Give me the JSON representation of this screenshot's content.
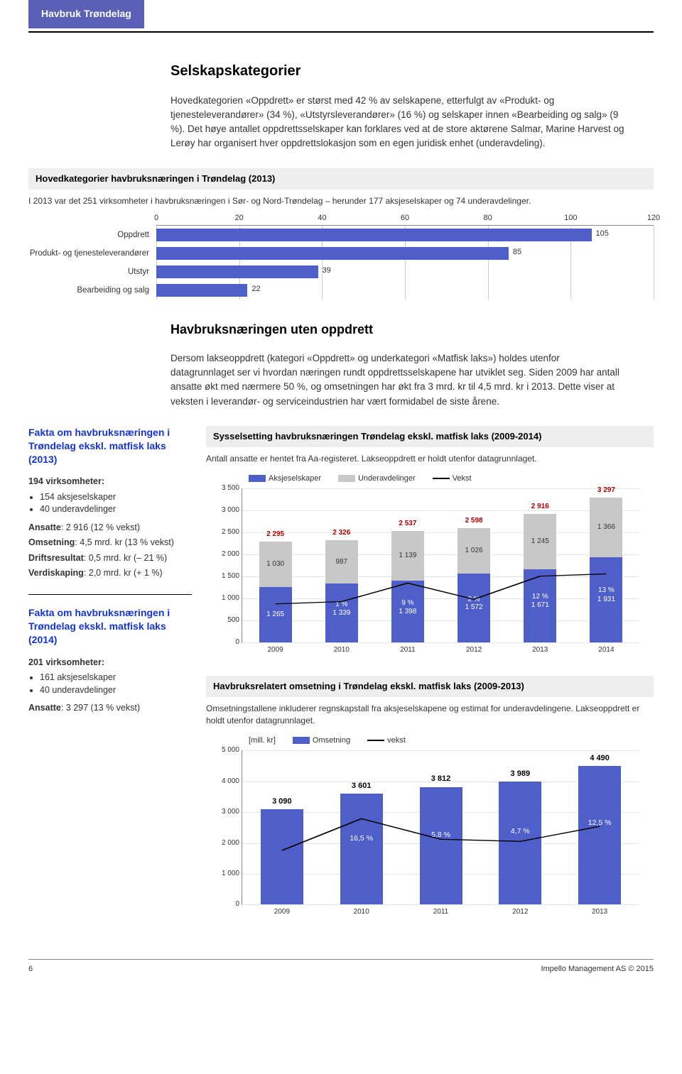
{
  "header_tab": "Havbruk Trøndelag",
  "s1": {
    "title": "Selskapskategorier",
    "body": "Hovedkategorien «Oppdrett» er størst med 42 % av selskapene, etterfulgt av «Produkt- og tjenesteleverandører» (34 %), «Utstyrsleverandører» (16 %) og selskaper innen «Bearbeiding og salg» (9 %). Det høye antallet oppdrettsselskaper kan forklares ved at de store aktørene Salmar, Marine Harvest og Lerøy har organisert hver oppdrettslokasjon som en egen juridisk enhet (underavdeling)."
  },
  "hbar": {
    "header": "Hovedkategorier havbruksnæringen i Trøndelag (2013)",
    "caption": "I 2013 var det 251 virksomheter i havbruksnæringen i Sør- og Nord-Trøndelag – herunder 177 aksjeselskaper og 74 underavdelinger.",
    "xmax": 120,
    "ticks": [
      0,
      20,
      40,
      60,
      80,
      100,
      120
    ],
    "bar_color": "#4f5fc9",
    "rows": [
      {
        "label": "Oppdrett",
        "value": 105
      },
      {
        "label": "Produkt- og tjenesteleverandører",
        "value": 85
      },
      {
        "label": "Utstyr",
        "value": 39
      },
      {
        "label": "Bearbeiding og salg",
        "value": 22
      }
    ]
  },
  "s2": {
    "title": "Havbruksnæringen uten oppdrett",
    "body": "Dersom lakseoppdrett (kategori «Oppdrett» og underkategori «Matfisk laks») holdes utenfor datagrunnlaget ser vi hvordan næringen rundt oppdrettsselskapene har utviklet seg. Siden 2009 har antall ansatte økt med nærmere 50 %, og omsetningen har økt fra 3 mrd. kr til 4,5 mrd. kr i 2013. Dette viser at veksten i leverandør- og serviceindustrien har vært formidabel de siste årene."
  },
  "fact2013": {
    "title": "Fakta om havbruksnæringen i Trøndelag ekskl. matfisk laks (2013)",
    "l1": "194 virksomheter:",
    "b1": "154 aksjeselskaper",
    "b2": "40 underavdelinger",
    "ansatte_label": "Ansatte",
    "ansatte_val": ": 2 916 (12 % vekst)",
    "oms_label": "Omsetning",
    "oms_val": ": 4,5 mrd. kr (13 % vekst)",
    "dr_label": "Driftsresultat",
    "dr_val": ": 0,5 mrd. kr (– 21 %)",
    "vs_label": "Verdiskaping",
    "vs_val": ": 2,0 mrd. kr (+ 1 %)"
  },
  "fact2014": {
    "title": "Fakta om havbruksnæringen i Trøndelag ekskl. matfisk laks (2014)",
    "l1": "201 virksomheter:",
    "b1": "161 aksjeselskaper",
    "b2": "40 underavdelinger",
    "ansatte_label": "Ansatte",
    "ansatte_val": ": 3 297 (13 % vekst)"
  },
  "stacked": {
    "header": "Sysselsetting havbruksnæringen Trøndelag ekskl. matfisk laks (2009-2014)",
    "caption": "Antall ansatte er hentet fra Aa-registeret. Lakseoppdrett er holdt utenfor datagrunnlaget.",
    "legend": {
      "a": "Aksjeselskaper",
      "b": "Underavdelinger",
      "c": "Vekst"
    },
    "color_a": "#4f5fc9",
    "color_b": "#c8c8c8",
    "total_color": "#b00000",
    "ymax": 3500,
    "ytick_step": 500,
    "years": [
      "2009",
      "2010",
      "2011",
      "2012",
      "2013",
      "2014"
    ],
    "a": [
      1265,
      1339,
      1398,
      1572,
      1671,
      1931
    ],
    "b": [
      1030,
      987,
      1139,
      1026,
      1245,
      1366
    ],
    "total": [
      2295,
      2326,
      2537,
      2598,
      2916,
      3297
    ],
    "growth_pct": [
      "",
      "1 %",
      "9 %",
      "2 %",
      "12 %",
      "13 %"
    ]
  },
  "omsetning": {
    "header": "Havbruksrelatert omsetning i Trøndelag ekskl. matfisk laks (2009-2013)",
    "caption": "Omsetningstallene inkluderer regnskapstall fra aksjeselskapene og estimat for underavdelingene. Lakseoppdrett er holdt utenfor datagrunnlaget.",
    "ylabel": "[mill. kr]",
    "legend": {
      "a": "Omsetning",
      "b": "vekst"
    },
    "color": "#4f5fc9",
    "ymax": 5000,
    "ytick_step": 1000,
    "years": [
      "2009",
      "2010",
      "2011",
      "2012",
      "2013"
    ],
    "values": [
      3090,
      3601,
      3812,
      3989,
      4490
    ],
    "growth_pct": [
      "",
      "16,5 %",
      "5,8 %",
      "4,7 %",
      "12,5 %"
    ]
  },
  "footer": {
    "page": "6",
    "right": "Impello Management AS © 2015"
  }
}
